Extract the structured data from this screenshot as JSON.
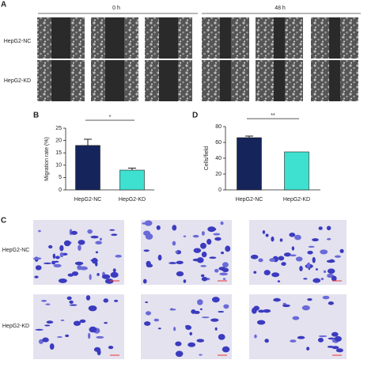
{
  "panel_a": {
    "label": "A",
    "columns": [
      "0 h",
      "48 h"
    ],
    "rows": [
      "HepG2-NC",
      "HepG2-KD"
    ]
  },
  "panel_c": {
    "label": "C",
    "rows": [
      "HepG2-NC",
      "HepG2-KD"
    ]
  },
  "chart_data": [
    {
      "type": "bar",
      "panel": "B",
      "y_label": "Migration rate (%)",
      "categories": [
        "HepG2-NC",
        "HepG2-KD"
      ],
      "values": [
        18,
        8
      ],
      "errors": [
        2.5,
        0.8
      ],
      "colors": [
        "#15245a",
        "#3ee0d0"
      ],
      "ylim": [
        0,
        25
      ],
      "yticks": [
        0,
        5,
        10,
        15,
        20,
        25
      ],
      "significance": "*"
    },
    {
      "type": "bar",
      "panel": "D",
      "y_label": "Cells/field",
      "categories": [
        "HepG2-NC",
        "HepG2-KD"
      ],
      "values": [
        66,
        48
      ],
      "errors": [
        2,
        0
      ],
      "colors": [
        "#15245a",
        "#3ee0d0"
      ],
      "ylim": [
        0,
        80
      ],
      "yticks": [
        0,
        20,
        40,
        60,
        80
      ],
      "significance": "**"
    }
  ]
}
